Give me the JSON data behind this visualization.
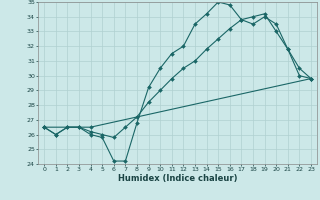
{
  "title": "",
  "xlabel": "Humidex (Indice chaleur)",
  "bg_color": "#cce8e8",
  "line_color": "#1a6666",
  "grid_color": "#b0d0d0",
  "xlim": [
    -0.5,
    23.5
  ],
  "ylim": [
    24,
    35
  ],
  "xticks": [
    0,
    1,
    2,
    3,
    4,
    5,
    6,
    7,
    8,
    9,
    10,
    11,
    12,
    13,
    14,
    15,
    16,
    17,
    18,
    19,
    20,
    21,
    22,
    23
  ],
  "yticks": [
    24,
    25,
    26,
    27,
    28,
    29,
    30,
    31,
    32,
    33,
    34,
    35
  ],
  "line1_x": [
    0,
    1,
    2,
    3,
    4,
    5,
    6,
    7,
    8,
    9,
    10,
    11,
    12,
    13,
    14,
    15,
    16,
    17,
    18,
    19,
    20,
    21,
    22,
    23
  ],
  "line1_y": [
    26.5,
    26.0,
    26.5,
    26.5,
    26.0,
    25.8,
    24.2,
    24.2,
    26.8,
    29.2,
    30.5,
    31.5,
    32.0,
    33.5,
    34.2,
    35.0,
    34.8,
    33.8,
    33.5,
    34.0,
    33.5,
    31.8,
    30.5,
    29.8
  ],
  "line2_x": [
    0,
    1,
    2,
    3,
    4,
    5,
    6,
    7,
    8,
    9,
    10,
    11,
    12,
    13,
    14,
    15,
    16,
    17,
    18,
    19,
    20,
    21,
    22,
    23
  ],
  "line2_y": [
    26.5,
    26.0,
    26.5,
    26.5,
    26.2,
    26.0,
    25.8,
    26.5,
    27.2,
    28.2,
    29.0,
    29.8,
    30.5,
    31.0,
    31.8,
    32.5,
    33.2,
    33.8,
    34.0,
    34.2,
    33.0,
    31.8,
    30.0,
    29.8
  ],
  "line3_x": [
    0,
    4,
    23
  ],
  "line3_y": [
    26.5,
    26.5,
    29.8
  ],
  "xlabel_fontsize": 6,
  "tick_fontsize": 4.5
}
